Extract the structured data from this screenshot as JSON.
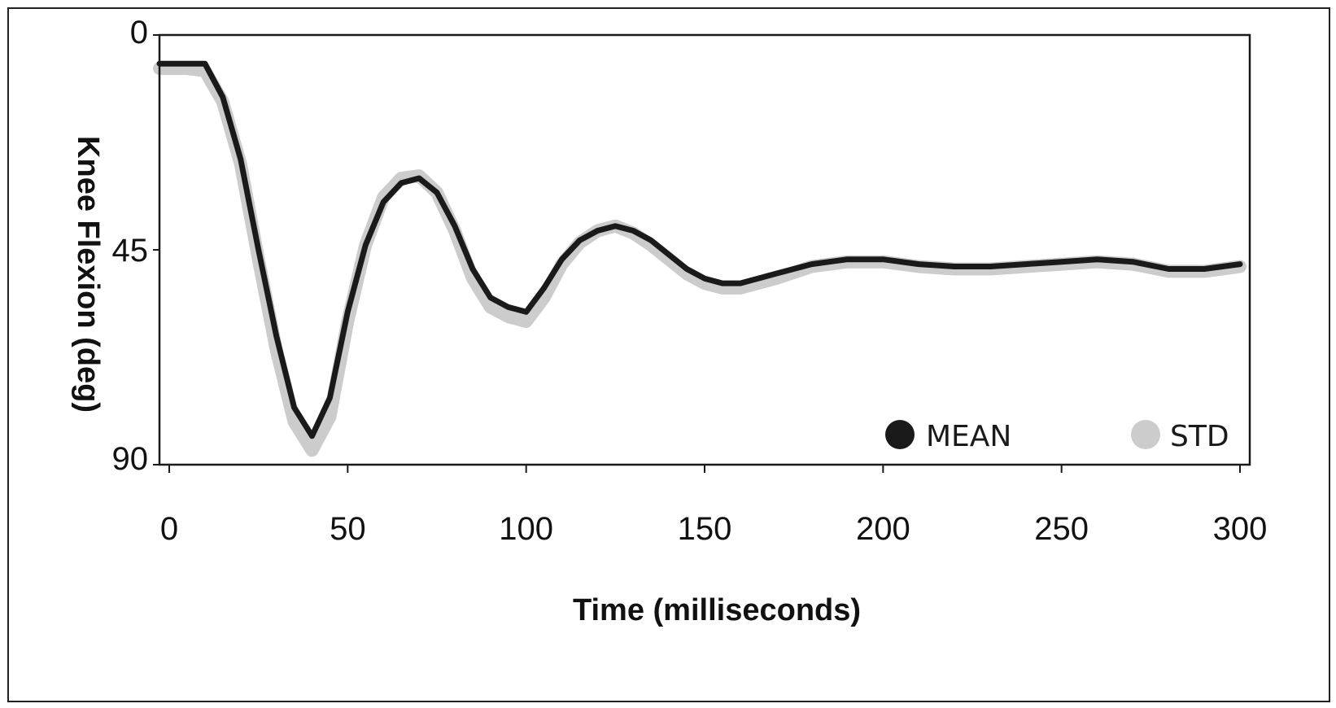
{
  "chart_data": {
    "type": "line",
    "title": "",
    "xlabel": "Time (milliseconds)",
    "ylabel": "Knee Flexion (deg)",
    "xlim": [
      0,
      300
    ],
    "ylim": [
      0,
      90
    ],
    "y_inverted": true,
    "grid": false,
    "legend_position": "bottom-right",
    "x_ticks": [
      "0",
      "50",
      "100",
      "150",
      "200",
      "250",
      "300"
    ],
    "x_tick_values": [
      0,
      50,
      100,
      150,
      200,
      250,
      300
    ],
    "y_ticks": [
      "0",
      "45",
      "90"
    ],
    "y_tick_values": [
      0,
      45,
      90
    ],
    "series": [
      {
        "name": "MEAN",
        "color": "#1a1a1a",
        "x": [
          -3,
          0,
          5,
          10,
          15,
          20,
          25,
          30,
          35,
          40,
          45,
          50,
          55,
          60,
          65,
          70,
          75,
          80,
          85,
          90,
          95,
          100,
          105,
          110,
          115,
          120,
          125,
          130,
          135,
          140,
          145,
          150,
          155,
          160,
          170,
          180,
          190,
          200,
          210,
          220,
          230,
          240,
          250,
          260,
          270,
          280,
          290,
          300
        ],
        "y": [
          6,
          6,
          6,
          6,
          13,
          26,
          45,
          63,
          78,
          84,
          76,
          58,
          44,
          35,
          31,
          30,
          33,
          40,
          49,
          55,
          57,
          58,
          53,
          47,
          43,
          41,
          40,
          41,
          43,
          46,
          49,
          51,
          52,
          52,
          50,
          48,
          47,
          47,
          48,
          48.5,
          48.5,
          48,
          47.5,
          47,
          47.5,
          49,
          49,
          48
        ]
      },
      {
        "name": "STD",
        "color": "#cccccc",
        "x": [
          -3,
          0,
          5,
          10,
          15,
          20,
          25,
          30,
          35,
          40,
          45,
          50,
          55,
          60,
          65,
          70,
          75,
          80,
          85,
          90,
          95,
          100,
          105,
          110,
          115,
          120,
          125,
          130,
          135,
          140,
          145,
          150,
          155,
          160,
          170,
          180,
          190,
          200,
          210,
          220,
          230,
          240,
          250,
          260,
          270,
          280,
          290,
          300
        ],
        "y": [
          7,
          7,
          7,
          7.5,
          14,
          27,
          47,
          66,
          81,
          87,
          80,
          60,
          44,
          34,
          30,
          29.5,
          33,
          41,
          51,
          57,
          59,
          60,
          55,
          48,
          43.5,
          41,
          40,
          41.5,
          44,
          47,
          50,
          52,
          53,
          53,
          51,
          48.5,
          47.5,
          47.5,
          48.5,
          49,
          49,
          48.5,
          48,
          47.5,
          48,
          49.5,
          49.5,
          48.5
        ]
      }
    ]
  }
}
